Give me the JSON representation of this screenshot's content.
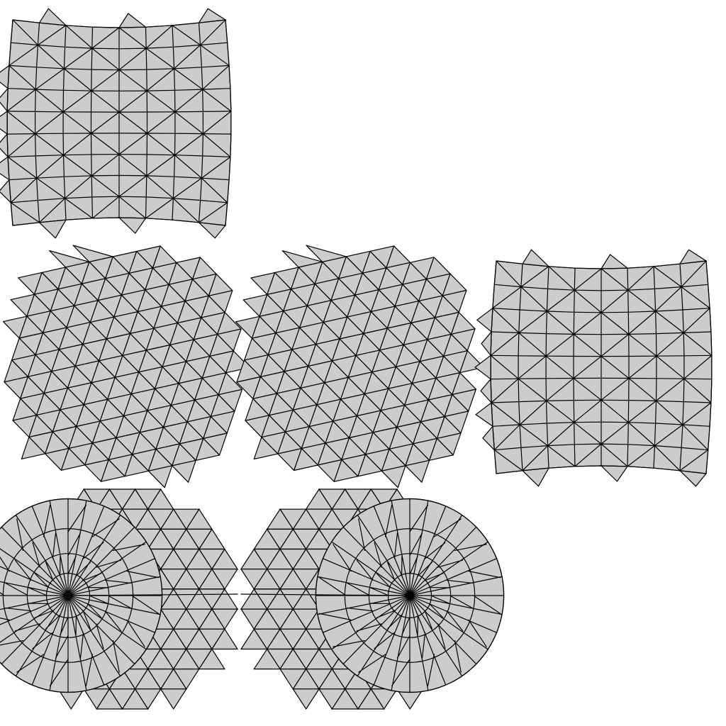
{
  "colors": {
    "background": "#ffffff",
    "face_fill": "#cccccc",
    "edge_stroke": "#000000"
  },
  "islands": [
    {
      "id": "island-top-left",
      "mesh": "quad-grid-triangulated",
      "columns": 8,
      "rows": 9,
      "bulge": "left"
    },
    {
      "id": "island-middle-left",
      "mesh": "triangle-lattice",
      "columns": 9,
      "rows": 11
    },
    {
      "id": "island-middle-center",
      "mesh": "triangle-lattice",
      "columns": 9,
      "rows": 11
    },
    {
      "id": "island-middle-right",
      "mesh": "quad-grid-triangulated",
      "columns": 8,
      "rows": 9,
      "bulge": "left"
    },
    {
      "id": "island-bottom-left",
      "mesh": "radial-pole",
      "rings": 4,
      "spokes": 32,
      "pole_side": "left"
    },
    {
      "id": "island-bottom-center",
      "mesh": "radial-pole",
      "rings": 4,
      "spokes": 32,
      "pole_side": "right"
    }
  ]
}
